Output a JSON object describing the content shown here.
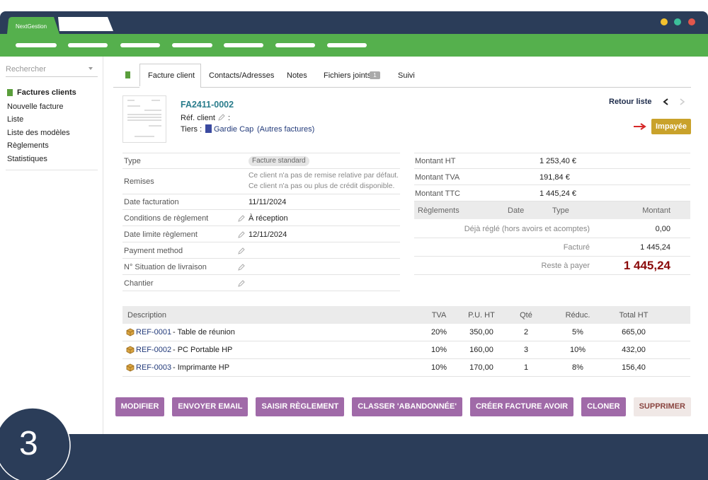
{
  "app": {
    "name": "NextGestion",
    "step": "3"
  },
  "sidebar": {
    "search_placeholder": "Rechercher",
    "menu": [
      "Factures clients",
      "Nouvelle facture",
      "Liste",
      "Liste des modèles",
      "Règlements",
      "Statistiques"
    ]
  },
  "tabs": [
    {
      "label": "Facture client",
      "active": true
    },
    {
      "label": "Contacts/Adresses"
    },
    {
      "label": "Notes"
    },
    {
      "label": "Fichiers joints",
      "badge": "1"
    },
    {
      "label": "Suivi"
    }
  ],
  "header": {
    "ref": "FA2411-0002",
    "ref_client_label": "Réf. client",
    "ref_client_colon": ":",
    "tiers_label": "Tiers :",
    "tiers": "Gardie Cap",
    "tiers_note": "(Autres factures)",
    "back": "Retour liste",
    "status": "Impayée"
  },
  "details": [
    {
      "label": "Type",
      "value": "Facture standard",
      "badge": true
    },
    {
      "label": "Remises",
      "lines": [
        "Ce client n'a pas de remise relative par défaut.",
        "Ce client n'a pas ou plus de crédit disponible."
      ]
    },
    {
      "label": "Date facturation",
      "value": "11/11/2024"
    },
    {
      "label": "Conditions de règlement",
      "value": "À réception",
      "editable": true
    },
    {
      "label": "Date limite règlement",
      "value": "12/11/2024",
      "editable": true
    },
    {
      "label": "Payment method",
      "editable": true
    },
    {
      "label": "N° Situation de livraison",
      "editable": true
    },
    {
      "label": "Chantier",
      "editable": true
    }
  ],
  "amounts": [
    {
      "label": "Montant HT",
      "value": "1 253,40 €"
    },
    {
      "label": "Montant TVA",
      "value": "191,84 €"
    },
    {
      "label": "Montant TTC",
      "value": "1 445,24 €"
    }
  ],
  "payments": {
    "columns": [
      "Règlements",
      "Date",
      "Type",
      "Montant"
    ],
    "rows": [
      {
        "label": "Déjà réglé (hors avoirs et acomptes)",
        "amount": "0,00"
      },
      {
        "label": "Facturé",
        "amount": "1 445,24"
      },
      {
        "label": "Reste à payer",
        "amount": "1 445,24",
        "highlight": true
      }
    ]
  },
  "lines": {
    "columns": [
      "Description",
      "TVA",
      "P.U. HT",
      "Qté",
      "Réduc.",
      "Total HT"
    ],
    "rows": [
      {
        "ref": "REF-0001",
        "label": "- Table de réunion",
        "tva": "20%",
        "pu": "350,00",
        "qty": "2",
        "reduc": "5%",
        "total": "665,00"
      },
      {
        "ref": "REF-0002",
        "label": "- PC Portable HP",
        "tva": "10%",
        "pu": "160,00",
        "qty": "3",
        "reduc": "10%",
        "total": "432,00"
      },
      {
        "ref": "REF-0003",
        "label": "- Imprimante HP",
        "tva": "10%",
        "pu": "170,00",
        "qty": "1",
        "reduc": "8%",
        "total": "156,40"
      }
    ]
  },
  "buttons": [
    {
      "label": "MODIFIER"
    },
    {
      "label": "ENVOYER EMAIL"
    },
    {
      "label": "SAISIR RÈGLEMENT"
    },
    {
      "label": "CLASSER 'ABANDONNÉE'"
    },
    {
      "label": "CRÉER FACTURE AVOIR"
    },
    {
      "label": "CLONER"
    },
    {
      "label": "SUPPRIMER",
      "light": true
    }
  ]
}
